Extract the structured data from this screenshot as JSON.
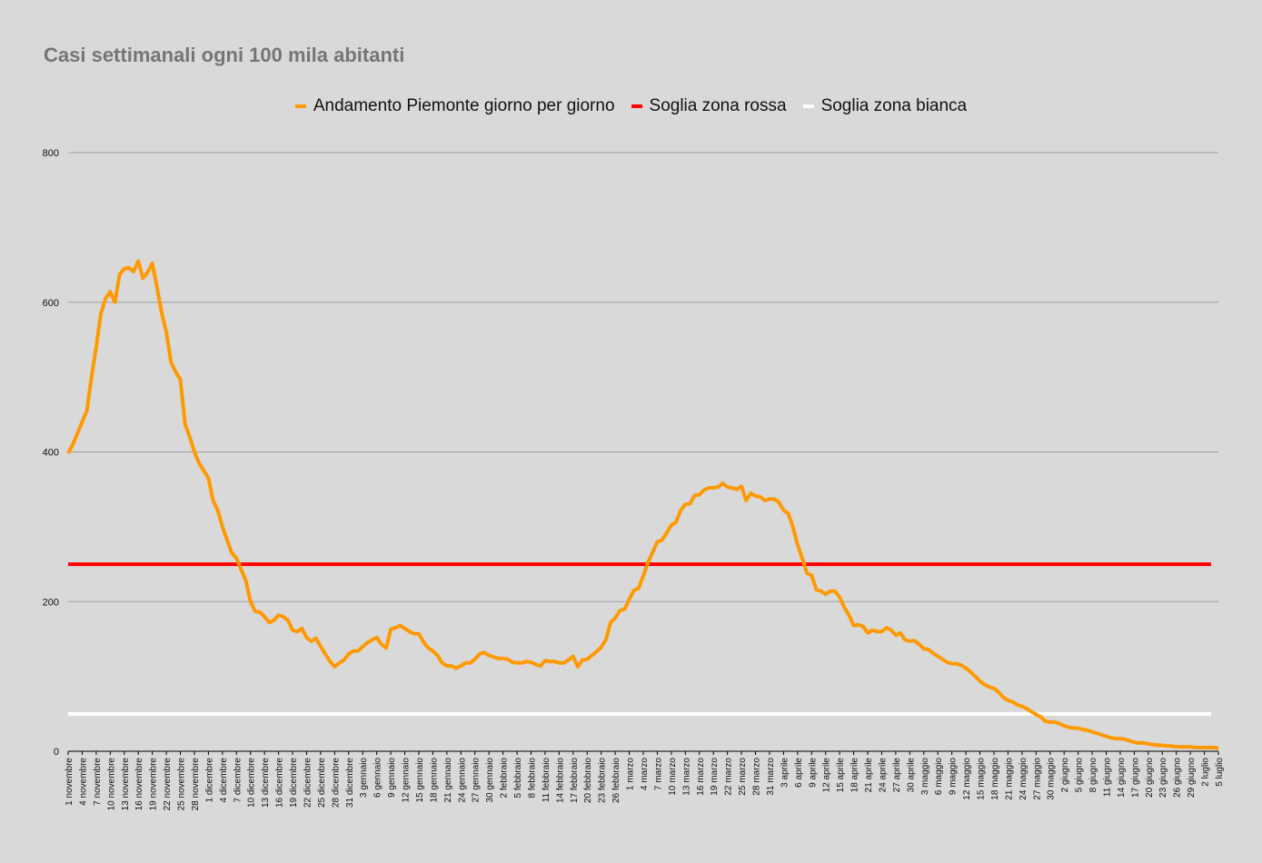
{
  "chart_data": {
    "type": "line",
    "title": "Casi settimanali ogni 100 mila abitanti",
    "ylim": [
      0,
      800
    ],
    "yticks": [
      0,
      200,
      400,
      600,
      800
    ],
    "grid": true,
    "legend_position": "top",
    "x_tick_labels": [
      "1 novembre",
      "4 novembre",
      "7 novembre",
      "10 novembre",
      "13 novembre",
      "16 novembre",
      "19 novembre",
      "22 novembre",
      "25 novembre",
      "28 novembre",
      "1 dicembre",
      "4 dicembre",
      "7 dicembre",
      "10 dicembre",
      "13 dicembre",
      "16 dicembre",
      "19 dicembre",
      "22 dicembre",
      "25 dicembre",
      "28 dicembre",
      "31 dicembre",
      "3 gennaio",
      "6 gennaio",
      "9 gennaio",
      "12 gennaio",
      "15 gennaio",
      "18 gennaio",
      "21 gennaio",
      "24 gennaio",
      "27 gennaio",
      "30 gennaio",
      "2 febbraio",
      "5 febbraio",
      "8 febbraio",
      "11 febbraio",
      "14 febbraio",
      "17 febbraio",
      "20 febbraio",
      "23 febbraio",
      "26 febbraio",
      "1 marzo",
      "4 marzo",
      "7 marzo",
      "10 marzo",
      "13 marzo",
      "16 marzo",
      "19 marzo",
      "22 marzo",
      "25 marzo",
      "28 marzo",
      "31 marzo",
      "3 aprile",
      "6 aprile",
      "9 aprile",
      "12 aprile",
      "15 aprile",
      "18 aprile",
      "21 aprile",
      "24 aprile",
      "27 aprile",
      "30 aprile",
      "3 maggio",
      "6 maggio",
      "9 maggio",
      "12 maggio",
      "15 maggio",
      "18 maggio",
      "21 maggio",
      "24 maggio",
      "27 maggio",
      "30 maggio",
      "2 giugno",
      "5 giugno",
      "8 giugno",
      "11 giugno",
      "14 giugno",
      "17 giugno",
      "20 giugno",
      "23 giugno",
      "26 giugno",
      "29 giugno",
      "2 luglio",
      "5 luglio"
    ],
    "series": [
      {
        "name": "Andamento Piemonte giorno per giorno",
        "color": "#ff9900",
        "keypoints": [
          [
            0,
            398
          ],
          [
            1,
            410
          ],
          [
            2,
            425
          ],
          [
            3,
            440
          ],
          [
            4,
            455
          ],
          [
            5,
            500
          ],
          [
            6,
            540
          ],
          [
            7,
            585
          ],
          [
            8,
            605
          ],
          [
            9,
            614
          ],
          [
            10,
            600
          ],
          [
            11,
            637
          ],
          [
            12,
            645
          ],
          [
            13,
            646
          ],
          [
            14,
            641
          ],
          [
            15,
            655
          ],
          [
            16,
            632
          ],
          [
            17,
            640
          ],
          [
            18,
            652
          ],
          [
            19,
            620
          ],
          [
            20,
            586
          ],
          [
            21,
            560
          ],
          [
            22,
            520
          ],
          [
            23,
            507
          ],
          [
            24,
            497
          ],
          [
            25,
            437
          ],
          [
            26,
            420
          ],
          [
            27,
            400
          ],
          [
            28,
            385
          ],
          [
            29,
            375
          ],
          [
            30,
            365
          ],
          [
            31,
            335
          ],
          [
            32,
            322
          ],
          [
            33,
            300
          ],
          [
            34,
            282
          ],
          [
            35,
            265
          ],
          [
            36,
            258
          ],
          [
            37,
            243
          ],
          [
            38,
            228
          ],
          [
            39,
            200
          ],
          [
            40,
            187
          ],
          [
            41,
            186
          ],
          [
            42,
            180
          ],
          [
            43,
            172
          ],
          [
            44,
            175
          ],
          [
            45,
            182
          ],
          [
            46,
            180
          ],
          [
            47,
            175
          ],
          [
            48,
            162
          ],
          [
            49,
            160
          ],
          [
            50,
            164
          ],
          [
            51,
            152
          ],
          [
            52,
            147
          ],
          [
            53,
            151
          ],
          [
            54,
            140
          ],
          [
            55,
            130
          ],
          [
            56,
            120
          ],
          [
            57,
            113
          ],
          [
            58,
            118
          ],
          [
            59,
            122
          ],
          [
            60,
            130
          ],
          [
            61,
            134
          ],
          [
            62,
            134
          ],
          [
            63,
            140
          ],
          [
            64,
            145
          ],
          [
            65,
            149
          ],
          [
            66,
            152
          ],
          [
            67,
            143
          ],
          [
            68,
            138
          ],
          [
            69,
            163
          ],
          [
            70,
            165
          ],
          [
            71,
            168
          ],
          [
            72,
            164
          ],
          [
            73,
            160
          ],
          [
            74,
            157
          ],
          [
            75,
            157
          ],
          [
            76,
            146
          ],
          [
            77,
            138
          ],
          [
            78,
            134
          ],
          [
            79,
            128
          ],
          [
            80,
            118
          ],
          [
            81,
            114
          ],
          [
            82,
            114
          ],
          [
            83,
            111
          ],
          [
            84,
            114
          ],
          [
            85,
            118
          ],
          [
            86,
            118
          ],
          [
            87,
            123
          ],
          [
            88,
            130
          ],
          [
            89,
            132
          ],
          [
            90,
            128
          ],
          [
            91,
            126
          ],
          [
            92,
            124
          ],
          [
            93,
            124
          ],
          [
            94,
            123
          ],
          [
            95,
            119
          ],
          [
            96,
            118
          ],
          [
            97,
            118
          ],
          [
            98,
            120
          ],
          [
            99,
            119
          ],
          [
            100,
            116
          ],
          [
            101,
            114
          ],
          [
            102,
            121
          ],
          [
            103,
            120
          ],
          [
            104,
            120
          ],
          [
            105,
            118
          ],
          [
            106,
            118
          ],
          [
            107,
            122
          ],
          [
            108,
            127
          ],
          [
            109,
            113
          ],
          [
            110,
            122
          ],
          [
            111,
            123
          ],
          [
            112,
            128
          ],
          [
            113,
            133
          ],
          [
            114,
            139
          ],
          [
            115,
            149
          ],
          [
            116,
            172
          ],
          [
            117,
            178
          ],
          [
            118,
            188
          ],
          [
            119,
            190
          ],
          [
            120,
            203
          ],
          [
            121,
            215
          ],
          [
            122,
            218
          ],
          [
            123,
            234
          ],
          [
            124,
            252
          ],
          [
            125,
            266
          ],
          [
            126,
            280
          ],
          [
            127,
            282
          ],
          [
            128,
            292
          ],
          [
            129,
            302
          ],
          [
            130,
            306
          ],
          [
            131,
            322
          ],
          [
            132,
            330
          ],
          [
            133,
            331
          ],
          [
            134,
            342
          ],
          [
            135,
            343
          ],
          [
            136,
            349
          ],
          [
            137,
            352
          ],
          [
            138,
            352
          ],
          [
            139,
            353
          ],
          [
            140,
            358
          ],
          [
            141,
            353
          ],
          [
            142,
            352
          ],
          [
            143,
            350
          ],
          [
            144,
            354
          ],
          [
            145,
            335
          ],
          [
            146,
            345
          ],
          [
            147,
            341
          ],
          [
            148,
            340
          ],
          [
            149,
            335
          ],
          [
            150,
            337
          ],
          [
            151,
            337
          ],
          [
            152,
            333
          ],
          [
            153,
            322
          ],
          [
            154,
            318
          ],
          [
            155,
            300
          ],
          [
            156,
            276
          ],
          [
            157,
            258
          ],
          [
            158,
            238
          ],
          [
            159,
            235
          ],
          [
            160,
            216
          ],
          [
            161,
            214
          ],
          [
            162,
            210
          ],
          [
            163,
            214
          ],
          [
            164,
            214
          ],
          [
            165,
            206
          ],
          [
            166,
            192
          ],
          [
            167,
            182
          ],
          [
            168,
            168
          ],
          [
            169,
            169
          ],
          [
            170,
            167
          ],
          [
            171,
            158
          ],
          [
            172,
            162
          ],
          [
            173,
            160
          ],
          [
            174,
            160
          ],
          [
            175,
            165
          ],
          [
            176,
            162
          ],
          [
            177,
            155
          ],
          [
            178,
            158
          ],
          [
            179,
            149
          ],
          [
            180,
            147
          ],
          [
            181,
            148
          ],
          [
            182,
            143
          ],
          [
            183,
            137
          ],
          [
            184,
            136
          ],
          [
            185,
            131
          ],
          [
            186,
            127
          ],
          [
            187,
            123
          ],
          [
            188,
            119
          ],
          [
            189,
            117
          ],
          [
            190,
            117
          ],
          [
            191,
            115
          ],
          [
            192,
            111
          ],
          [
            193,
            106
          ],
          [
            194,
            100
          ],
          [
            195,
            94
          ],
          [
            196,
            89
          ],
          [
            197,
            86
          ],
          [
            198,
            84
          ],
          [
            199,
            79
          ],
          [
            200,
            72
          ],
          [
            201,
            68
          ],
          [
            202,
            66
          ],
          [
            203,
            62
          ],
          [
            204,
            60
          ],
          [
            205,
            57
          ],
          [
            206,
            53
          ],
          [
            207,
            49
          ],
          [
            208,
            46
          ],
          [
            209,
            40
          ],
          [
            210,
            39
          ],
          [
            211,
            39
          ],
          [
            212,
            37
          ],
          [
            213,
            34
          ],
          [
            214,
            32
          ],
          [
            215,
            31
          ],
          [
            216,
            31
          ],
          [
            217,
            29
          ],
          [
            218,
            28
          ],
          [
            219,
            26
          ],
          [
            220,
            24
          ],
          [
            221,
            22
          ],
          [
            222,
            20
          ],
          [
            223,
            18
          ],
          [
            224,
            17
          ],
          [
            225,
            17
          ],
          [
            226,
            16
          ],
          [
            227,
            14
          ],
          [
            228,
            12
          ],
          [
            229,
            11
          ],
          [
            230,
            11
          ],
          [
            231,
            10
          ],
          [
            232,
            9
          ],
          [
            233,
            8
          ],
          [
            234,
            8
          ],
          [
            235,
            7
          ],
          [
            236,
            7
          ],
          [
            237,
            6
          ],
          [
            238,
            6
          ],
          [
            239,
            6
          ],
          [
            240,
            6
          ],
          [
            241,
            5
          ],
          [
            242,
            5
          ],
          [
            243,
            5
          ],
          [
            244,
            5
          ],
          [
            245,
            5
          ],
          [
            246,
            4
          ]
        ]
      },
      {
        "name": "Soglia zona rossa",
        "color": "#ff0000",
        "constant": 250
      },
      {
        "name": "Soglia zona bianca",
        "color": "#ffffff",
        "constant": 50
      }
    ]
  }
}
